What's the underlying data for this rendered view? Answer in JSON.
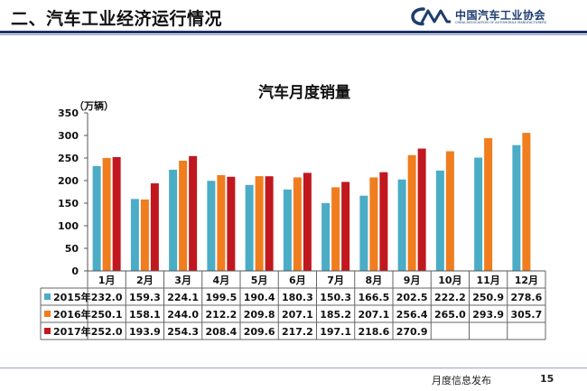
{
  "slide": {
    "title": "二、汽车工业经济运行情况",
    "org_name": "中国汽车工业协会",
    "org_name_en": "CHINA ASSOCIATION OF AUTOMOBILE MANUFACTURERS",
    "footer_label": "月度信息发布",
    "page_number": "15"
  },
  "chart_data": {
    "type": "bar",
    "title": "汽车月度销量",
    "ylabel": "（万辆）",
    "xlabel": "",
    "ylim": [
      0,
      350
    ],
    "yticks": [
      0,
      50,
      100,
      150,
      200,
      250,
      300,
      350
    ],
    "grid": false,
    "legend": "data-table",
    "categories": [
      "1月",
      "2月",
      "3月",
      "4月",
      "5月",
      "6月",
      "7月",
      "8月",
      "9月",
      "10月",
      "11月",
      "12月"
    ],
    "series": [
      {
        "name": "2015年",
        "color": "#4bacc6",
        "values": [
          232.0,
          159.3,
          224.1,
          199.5,
          190.4,
          180.3,
          150.3,
          166.5,
          202.5,
          222.2,
          250.9,
          278.6
        ]
      },
      {
        "name": "2016年",
        "color": "#f07d1e",
        "values": [
          250.1,
          158.1,
          244.0,
          212.2,
          209.8,
          207.1,
          185.2,
          207.1,
          256.4,
          265.0,
          293.9,
          305.7
        ]
      },
      {
        "name": "2017年",
        "color": "#c0181e",
        "values": [
          252.0,
          193.9,
          254.3,
          208.4,
          209.6,
          217.2,
          197.1,
          218.6,
          270.9,
          null,
          null,
          null
        ]
      }
    ]
  }
}
